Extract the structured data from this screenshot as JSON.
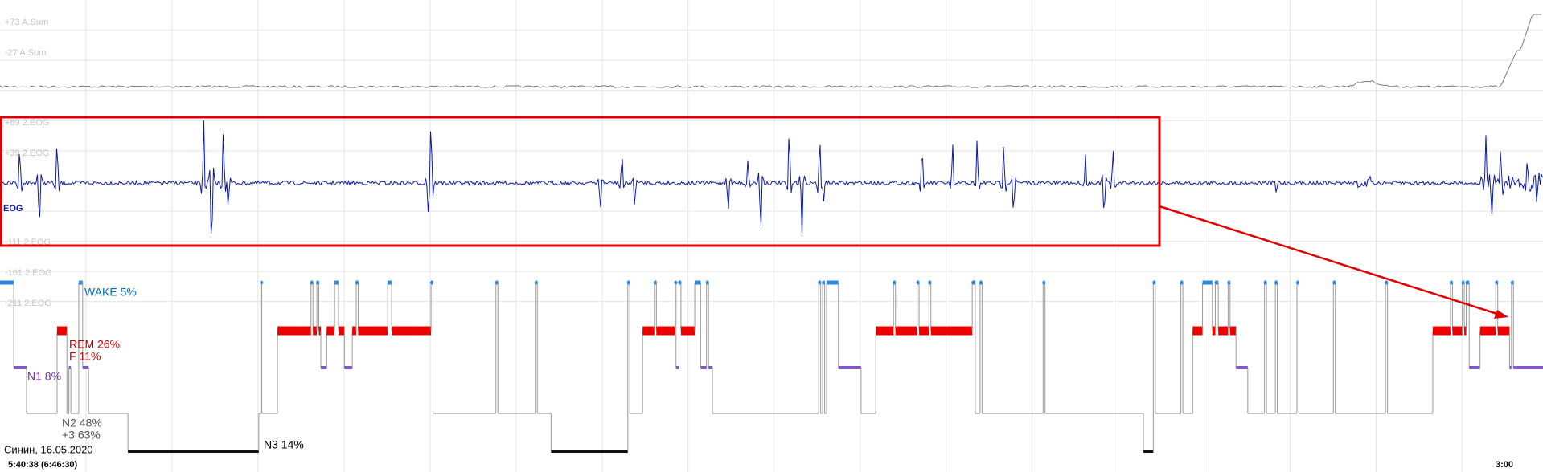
{
  "axis_labels": [
    "+73 A.Sum",
    "-27 A.Sum",
    "+89 2.EOG",
    "+39 2.EOG",
    "-111 2.EOG",
    "-161 2.EOG",
    "-211 2.EOG"
  ],
  "channel": "EOG",
  "stages": {
    "wake": "WAKE 5%",
    "rem": "REM 26%",
    "f": "F 11%",
    "n1": "N1 8%",
    "n2": "N2 48%",
    "plus3": "+3 63%",
    "n3": "N3 14%"
  },
  "footer": {
    "patient": "Синин, 16.05.2020",
    "start": "5:40:38 (6:46:30)",
    "time_mark": "3:00"
  }
}
